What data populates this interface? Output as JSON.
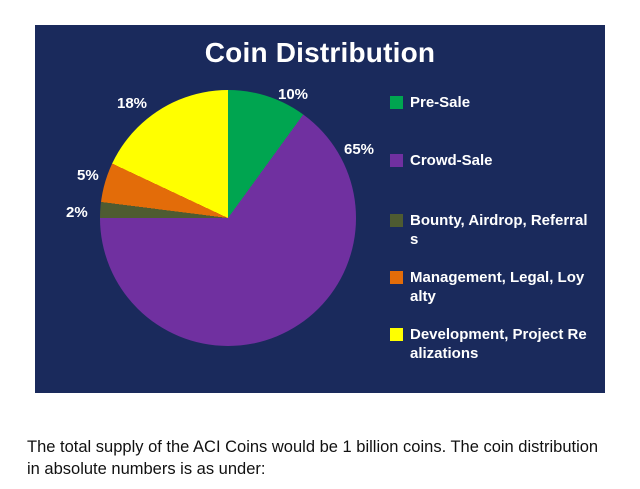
{
  "chart_data": {
    "type": "pie",
    "title": "Coin Distribution",
    "background_color": "#1A2A5C",
    "title_color": "#FFFFFF",
    "legend_position": "right",
    "slices": [
      {
        "label": "Pre-Sale",
        "value": 10,
        "pct_label": "10%",
        "color": "#00A550"
      },
      {
        "label": "Crowd-Sale",
        "value": 65,
        "pct_label": "65%",
        "color": "#7030A0"
      },
      {
        "label": "Bounty, Airdrop, Referrals",
        "value": 2,
        "pct_label": "2%",
        "color": "#4E5B31"
      },
      {
        "label": "Management, Legal, Loyalty",
        "value": 5,
        "pct_label": "5%",
        "color": "#E36C09"
      },
      {
        "label": "Development, Project Realizations",
        "value": 18,
        "pct_label": "18%",
        "color": "#FFFF00"
      }
    ]
  },
  "body_text": "The total supply of the ACI Coins would be 1 billion coins. The coin distribution in absolute numbers is as under:"
}
